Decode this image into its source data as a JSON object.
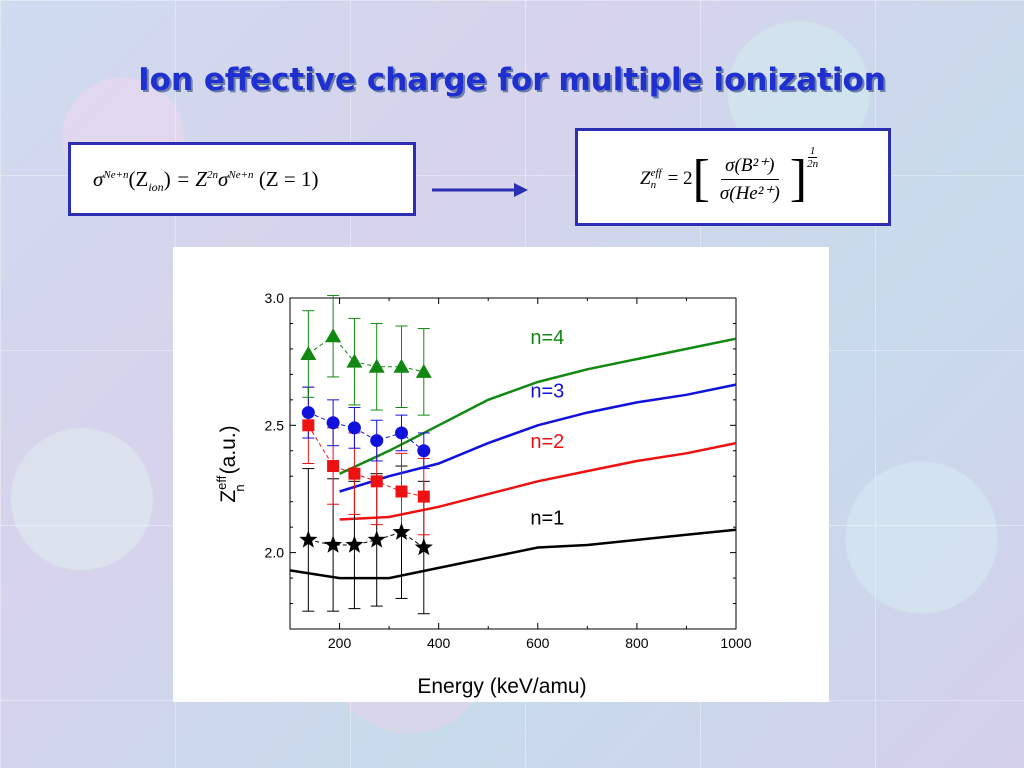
{
  "title": "Ion effective charge for multiple ionization",
  "formula1": {
    "sigma": "σ",
    "sup1": "Ne+n",
    "z_ion_open": "(Z",
    "ion": "ion",
    "z_ion_close": ")",
    "eq": " = Z",
    "pow": "2n",
    "sigma2": "σ",
    "sup2": "Ne+n",
    "cond": " (Z = 1)"
  },
  "formula2": {
    "z": "Z",
    "eff": "eff",
    "n": "n",
    "eq": "= 2",
    "num": "σ(B²⁺)",
    "den": "σ(He²⁺)",
    "exp_num": "1",
    "exp_den": "2n"
  },
  "colors": {
    "title": "#1f2fd0",
    "box_border": "#2c2fb4",
    "arrow": "#2c2fb4",
    "n1": "#000000",
    "n2": "#ee1111",
    "n3": "#1111dd",
    "n4": "#118811"
  },
  "chart_data": {
    "type": "line",
    "xlabel": "Energy (keV/amu)",
    "ylabel": "Z",
    "ylabel_sup": "eff",
    "ylabel_sub": "n",
    "ylabel_unit": "(a.u.)",
    "xlim": [
      100,
      1000
    ],
    "ylim": [
      1.7,
      3.0
    ],
    "x_ticks": [
      200,
      400,
      600,
      800,
      1000
    ],
    "y_ticks": [
      2.0,
      2.5,
      3.0
    ],
    "x_tick_labels": [
      "200",
      "400",
      "600",
      "800",
      "1000"
    ],
    "y_tick_labels": [
      "2.0",
      "2.5",
      "3.0"
    ],
    "grid": false,
    "curves": [
      {
        "name": "n=1",
        "color": "#000000",
        "x": [
          100,
          200,
          250,
          300,
          400,
          500,
          600,
          700,
          800,
          900,
          1000
        ],
        "y": [
          1.93,
          1.9,
          1.9,
          1.9,
          1.94,
          1.98,
          2.02,
          2.03,
          2.05,
          2.07,
          2.09
        ]
      },
      {
        "name": "n=2",
        "color": "#ee1111",
        "x": [
          200,
          300,
          400,
          500,
          600,
          700,
          800,
          900,
          1000
        ],
        "y": [
          2.13,
          2.14,
          2.18,
          2.23,
          2.28,
          2.32,
          2.36,
          2.39,
          2.43
        ]
      },
      {
        "name": "n=3",
        "color": "#1111dd",
        "x": [
          200,
          300,
          400,
          500,
          600,
          700,
          800,
          900,
          1000
        ],
        "y": [
          2.24,
          2.3,
          2.35,
          2.43,
          2.5,
          2.55,
          2.59,
          2.62,
          2.66
        ]
      },
      {
        "name": "n=4",
        "color": "#118811",
        "x": [
          200,
          300,
          400,
          500,
          600,
          700,
          800,
          900,
          1000
        ],
        "y": [
          2.31,
          2.4,
          2.5,
          2.6,
          2.67,
          2.72,
          2.76,
          2.8,
          2.84
        ]
      }
    ],
    "markers": [
      {
        "series": "n=1",
        "symbol": "star",
        "color": "#000000",
        "x": [
          137,
          187,
          230,
          275,
          325,
          370
        ],
        "y": [
          2.05,
          2.03,
          2.03,
          2.05,
          2.08,
          2.02
        ],
        "err": [
          0.28,
          0.26,
          0.25,
          0.26,
          0.26,
          0.26
        ]
      },
      {
        "series": "n=2",
        "symbol": "square",
        "color": "#ee1111",
        "x": [
          137,
          187,
          230,
          275,
          325,
          370
        ],
        "y": [
          2.5,
          2.34,
          2.31,
          2.28,
          2.24,
          2.22
        ],
        "err": [
          0.15,
          0.15,
          0.16,
          0.17,
          0.15,
          0.15
        ]
      },
      {
        "series": "n=3",
        "symbol": "circle",
        "color": "#1111dd",
        "x": [
          137,
          187,
          230,
          275,
          325,
          370
        ],
        "y": [
          2.55,
          2.51,
          2.49,
          2.44,
          2.47,
          2.4
        ],
        "err": [
          0.1,
          0.09,
          0.08,
          0.08,
          0.07,
          0.07
        ]
      },
      {
        "series": "n=4",
        "symbol": "triangle",
        "color": "#118811",
        "x": [
          137,
          187,
          230,
          275,
          325,
          370
        ],
        "y": [
          2.78,
          2.85,
          2.75,
          2.73,
          2.73,
          2.71
        ],
        "err": [
          0.17,
          0.16,
          0.17,
          0.17,
          0.16,
          0.17
        ]
      }
    ],
    "annotations": [
      {
        "text": "n=4",
        "color": "#118811",
        "x": 585,
        "y": 2.82
      },
      {
        "text": "n=3",
        "color": "#1111dd",
        "x": 585,
        "y": 2.61
      },
      {
        "text": "n=2",
        "color": "#ee1111",
        "x": 585,
        "y": 2.41
      },
      {
        "text": "n=1",
        "color": "#000000",
        "x": 585,
        "y": 2.11
      }
    ]
  }
}
